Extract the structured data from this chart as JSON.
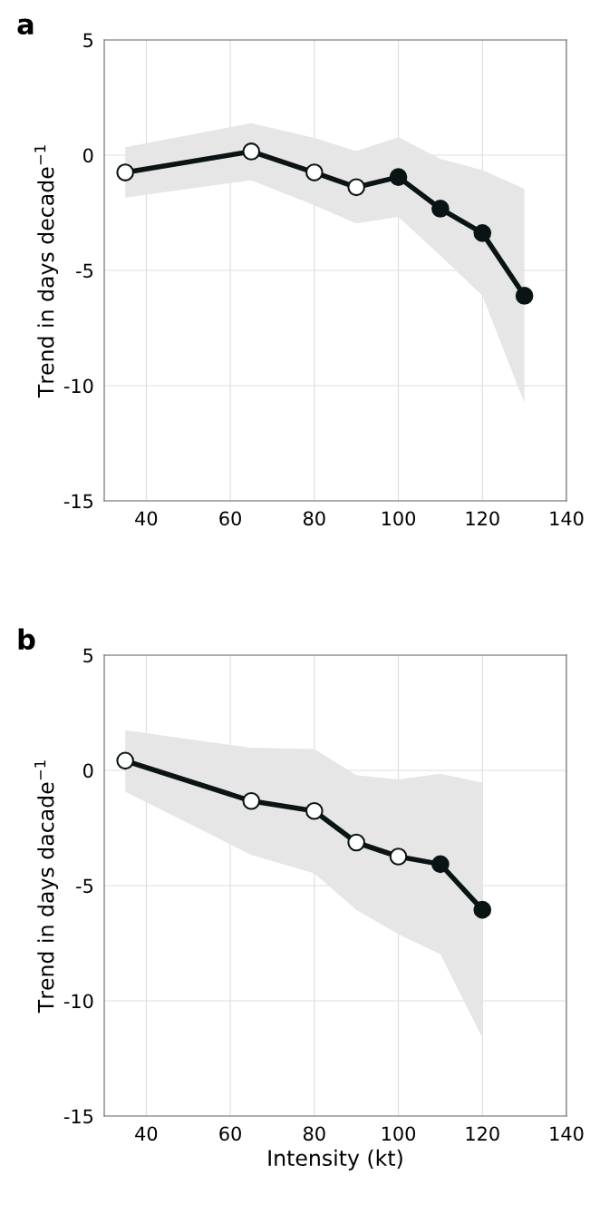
{
  "chart_data": [
    {
      "type": "line",
      "title": "a",
      "ylabel": "Trend in days decade$^{−1}$",
      "x": [
        35,
        65,
        80,
        90,
        100,
        110,
        120,
        130
      ],
      "xlim": [
        30,
        140
      ],
      "xticks": [
        40,
        60,
        80,
        100,
        120,
        140
      ],
      "ylim": [
        -15,
        5
      ],
      "yticks": [
        -15,
        -10,
        -5,
        0,
        5
      ],
      "grid": true,
      "marker": "circle",
      "series": [
        {
          "color": "#0a1414",
          "values": [
            -0.75,
            0.16,
            -0.75,
            -1.39,
            -0.95,
            -2.32,
            -3.38,
            -6.1
          ],
          "lower": [
            -1.84,
            -1.09,
            -2.18,
            -2.96,
            -2.68,
            -4.36,
            -6.1,
            -10.76
          ],
          "upper": [
            0.34,
            1.39,
            0.75,
            0.18,
            0.78,
            -0.16,
            -0.65,
            -1.46
          ],
          "colors": [
            "#ffffff",
            "#ffffff",
            "#ffffff",
            "#ffffff",
            "#0a1414",
            "#0a1414",
            "#0a1414",
            "#0a1414"
          ]
        }
      ]
    },
    {
      "type": "line",
      "title": "b",
      "xlabel": "Intensity (kt)",
      "ylabel": "Trend in days dacade$^{−1}$",
      "x": [
        35,
        65,
        80,
        90,
        100,
        110,
        120
      ],
      "xlim": [
        30,
        140
      ],
      "xticks": [
        40,
        60,
        80,
        100,
        120,
        140
      ],
      "ylim": [
        -15,
        5
      ],
      "yticks": [
        -15,
        -10,
        -5,
        0,
        5
      ],
      "grid": true,
      "marker": "circle",
      "series": [
        {
          "color": "#0a1414",
          "values": [
            0.42,
            -1.33,
            -1.76,
            -3.13,
            -3.74,
            -4.07,
            -6.05
          ],
          "lower": [
            -0.93,
            -3.67,
            -4.47,
            -6.05,
            -7.11,
            -7.98,
            -11.6
          ],
          "upper": [
            1.74,
            0.98,
            0.93,
            -0.21,
            -0.39,
            -0.15,
            -0.53
          ],
          "colors": [
            "#ffffff",
            "#ffffff",
            "#ffffff",
            "#ffffff",
            "#ffffff",
            "#0a1414",
            "#0a1414"
          ]
        }
      ]
    }
  ]
}
